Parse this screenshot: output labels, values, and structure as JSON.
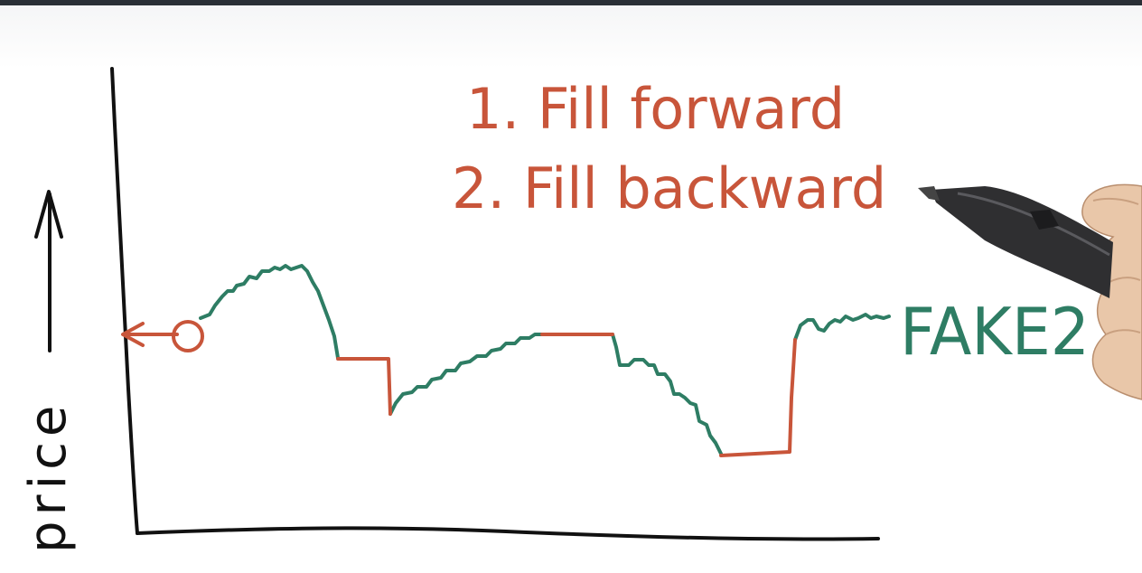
{
  "whiteboard": {
    "y_axis_label": "price",
    "steps": [
      {
        "label": "1. Fill forward"
      },
      {
        "label": "2. Fill backward"
      }
    ],
    "series_label": "FAKE2",
    "colors": {
      "axis": "#111111",
      "data_line": "#2e7d64",
      "fill_line": "#c8553a",
      "ink_red": "#c8553a",
      "ink_green": "#2e7d64"
    }
  }
}
